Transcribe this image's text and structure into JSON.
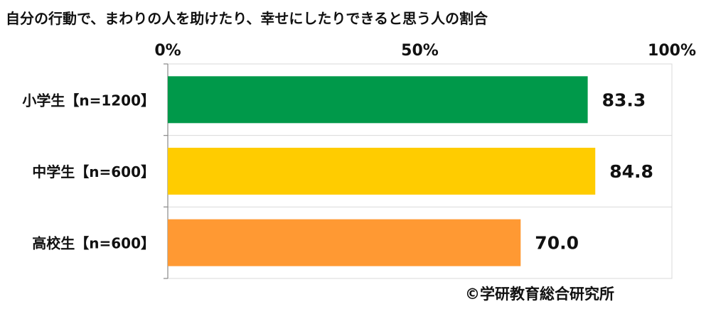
{
  "title": "自分の行動で、まわりの人を助けたり、幸せにしたりできると思う人の割合",
  "copyright": "©学研教育総合研究所",
  "chart_data": {
    "type": "bar",
    "orientation": "horizontal",
    "categories": [
      "小学生【n=1200】",
      "中学生【n=600】",
      "高校生【n=600】"
    ],
    "values": [
      83.3,
      84.8,
      70.0
    ],
    "value_labels": [
      "83.3",
      "84.8",
      "70.0"
    ],
    "colors": [
      "#00994a",
      "#ffcc00",
      "#ff9933"
    ],
    "xlim": [
      0,
      100
    ],
    "ticks": [
      0,
      50,
      100
    ],
    "tick_labels": [
      "0%",
      "50%",
      "100%"
    ],
    "grid": true,
    "legend": "none"
  }
}
